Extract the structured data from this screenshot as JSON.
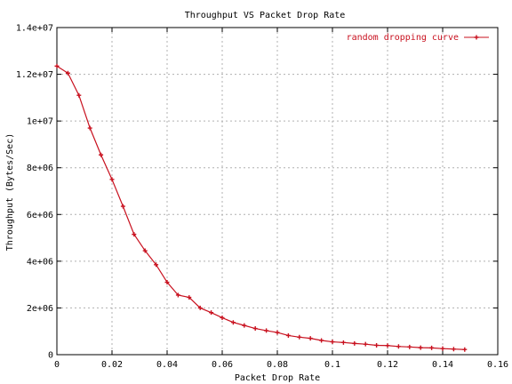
{
  "chart_data": {
    "type": "line",
    "title": "Throughput VS Packet Drop Rate",
    "xlabel": "Packet Drop Rate",
    "ylabel": "Throughput (Bytes/Sec)",
    "xlim": [
      0,
      0.16
    ],
    "ylim": [
      0,
      14000000
    ],
    "x_ticks": [
      0,
      0.02,
      0.04,
      0.06,
      0.08,
      0.1,
      0.12,
      0.14,
      0.16
    ],
    "x_tick_labels": [
      "0",
      "0.02",
      "0.04",
      "0.06",
      "0.08",
      "0.1",
      "0.12",
      "0.14",
      "0.16"
    ],
    "y_ticks": [
      0,
      2000000,
      4000000,
      6000000,
      8000000,
      10000000,
      12000000,
      14000000
    ],
    "y_tick_labels": [
      "0",
      "2e+06",
      "4e+06",
      "6e+06",
      "8e+06",
      "1e+07",
      "1.2e+07",
      "1.4e+07"
    ],
    "grid": true,
    "legend_position": "top-right",
    "series": [
      {
        "name": "random dropping curve",
        "color": "#c8101e",
        "x": [
          0,
          0.004,
          0.008,
          0.012,
          0.016,
          0.02,
          0.024,
          0.028,
          0.032,
          0.036,
          0.04,
          0.044,
          0.048,
          0.052,
          0.056,
          0.06,
          0.064,
          0.068,
          0.072,
          0.076,
          0.08,
          0.084,
          0.088,
          0.092,
          0.096,
          0.1,
          0.104,
          0.108,
          0.112,
          0.116,
          0.12,
          0.124,
          0.128,
          0.132,
          0.136,
          0.14,
          0.144,
          0.148
        ],
        "y": [
          12350000,
          12050000,
          11100000,
          9700000,
          8550000,
          7500000,
          6350000,
          5150000,
          4450000,
          3850000,
          3100000,
          2550000,
          2450000,
          2000000,
          1800000,
          1580000,
          1380000,
          1250000,
          1120000,
          1030000,
          950000,
          820000,
          750000,
          700000,
          610000,
          550000,
          520000,
          480000,
          450000,
          400000,
          390000,
          350000,
          330000,
          300000,
          290000,
          260000,
          240000,
          220000
        ]
      }
    ]
  }
}
